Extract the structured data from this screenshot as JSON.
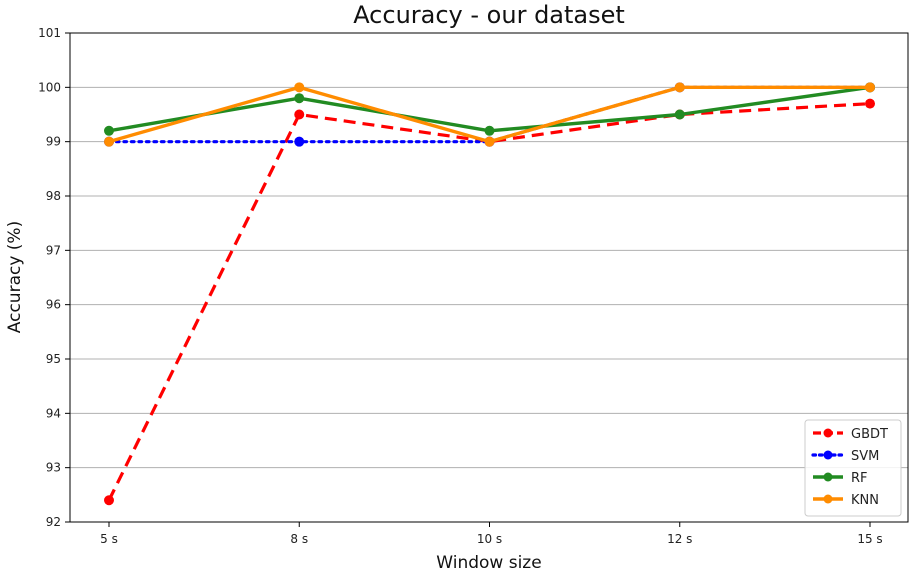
{
  "chart_data": {
    "type": "line",
    "title": "Accuracy - our dataset",
    "xlabel": "Window size",
    "ylabel": "Accuracy (%)",
    "categories": [
      "5 s",
      "8 s",
      "10 s",
      "12 s",
      "15 s"
    ],
    "ylim": [
      92,
      101
    ],
    "yticks": [
      92,
      93,
      94,
      95,
      96,
      97,
      98,
      99,
      100,
      101
    ],
    "grid": "horizontal",
    "legend_position": "lower-right",
    "series": [
      {
        "name": "GBDT",
        "values": [
          92.4,
          99.5,
          99.0,
          99.5,
          99.7
        ],
        "color": "#ff0000",
        "style": "dashed"
      },
      {
        "name": "SVM",
        "values": [
          99.0,
          99.0,
          99.0,
          100.0,
          100.0
        ],
        "color": "#0000ff",
        "style": "dotted"
      },
      {
        "name": "RF",
        "values": [
          99.2,
          99.8,
          99.2,
          99.5,
          100.0
        ],
        "color": "#228b22",
        "style": "solid"
      },
      {
        "name": "KNN",
        "values": [
          99.0,
          100.0,
          99.0,
          100.0,
          100.0
        ],
        "color": "#ff8c00",
        "style": "solid"
      }
    ]
  }
}
